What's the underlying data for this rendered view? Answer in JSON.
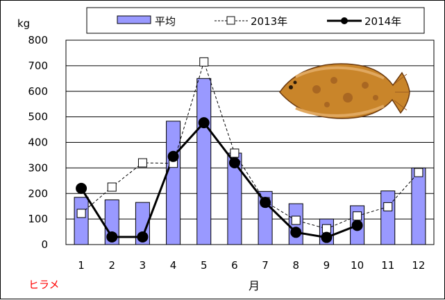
{
  "chart_data": {
    "type": "bar",
    "categories": [
      "1",
      "2",
      "3",
      "4",
      "5",
      "6",
      "7",
      "8",
      "9",
      "10",
      "11",
      "12"
    ],
    "series": [
      {
        "name": "平均",
        "kind": "bar",
        "values": [
          185,
          175,
          165,
          483,
          650,
          358,
          208,
          160,
          100,
          152,
          210,
          300
        ],
        "color": "#9999ff"
      },
      {
        "name": "2013年",
        "kind": "line-dashed-open-square",
        "values": [
          122,
          225,
          320,
          318,
          715,
          358,
          168,
          95,
          62,
          112,
          148,
          282
        ],
        "color": "#000000"
      },
      {
        "name": "2014年",
        "kind": "line-bold-filled-circle",
        "values": [
          220,
          30,
          30,
          345,
          477,
          320,
          165,
          48,
          28,
          75,
          null,
          null
        ],
        "color": "#000000"
      }
    ],
    "ylim": [
      0,
      800
    ],
    "yticks": [
      "0",
      "100",
      "200",
      "300",
      "400",
      "500",
      "600",
      "700",
      "800"
    ],
    "yunit": "kg",
    "xlabel": "月",
    "grid": true,
    "legend_position": "top"
  },
  "species_label": "ヒラメ",
  "illustration": "flounder-fish"
}
